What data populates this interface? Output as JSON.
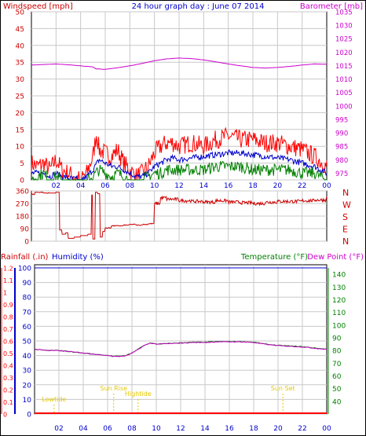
{
  "header": {
    "left": "Windspeed [mph]",
    "center": "24 hour graph day : June 07 2014",
    "right": "Barometer [mb]"
  },
  "colors": {
    "wind_axis": "#cc0000",
    "baro_axis": "#cc00cc",
    "title": "#0000cc",
    "wind_high": "#ff0000",
    "wind_avg": "#0000cc",
    "wind_low": "#008000",
    "barometer": "#cc00cc",
    "direction": "#cc0000",
    "temperature": "#008000",
    "dewpoint": "#cc00cc",
    "rain": "#ff0000",
    "humidity": "#0000cc",
    "sun": "#e6c800",
    "grid": "#c8c8c8"
  },
  "x_tick_labels": [
    "02",
    "04",
    "06",
    "08",
    "10",
    "12",
    "14",
    "16",
    "18",
    "20",
    "22",
    "00"
  ],
  "chart_data": [
    {
      "type": "line",
      "panel": "wind_barometer",
      "x_unit": "hour",
      "x_range": [
        0,
        24
      ],
      "left_axis": {
        "label": "Windspeed [mph]",
        "ticks": [
          "0",
          "5",
          "10",
          "15",
          "20",
          "25",
          "30",
          "35",
          "40",
          "45",
          "50"
        ],
        "range": [
          0,
          50
        ]
      },
      "right_axis": {
        "label": "Barometer [mb]",
        "ticks": [
          "975",
          "980",
          "985",
          "990",
          "995",
          "1000",
          "1005",
          "1010",
          "1015",
          "1020",
          "1025",
          "1030",
          "1035"
        ],
        "range": [
          972.5,
          1035
        ]
      },
      "series": [
        {
          "name": "wind_high",
          "axis": "left",
          "x": [
            0,
            0.5,
            1,
            1.5,
            2,
            2.5,
            3,
            3.5,
            4,
            4.5,
            5,
            5.3,
            5.5,
            6,
            6.5,
            7,
            7.5,
            8,
            8.5,
            9,
            9.5,
            10,
            10.5,
            11,
            11.5,
            12,
            13,
            14,
            15,
            16,
            17,
            18,
            19,
            20,
            21,
            22,
            23,
            24
          ],
          "y": [
            5,
            4,
            5,
            3,
            6,
            3,
            2,
            1,
            0,
            2,
            7,
            14,
            9,
            8,
            7,
            9,
            5,
            3,
            1,
            2,
            4,
            8,
            10,
            11,
            11,
            10,
            11,
            10,
            12,
            13,
            12,
            12,
            11,
            11,
            10,
            9,
            7,
            4
          ]
        },
        {
          "name": "wind_avg",
          "axis": "left",
          "x": [
            0,
            0.5,
            1,
            1.5,
            2,
            2.5,
            3,
            3.5,
            4,
            4.5,
            5,
            5.5,
            6,
            6.5,
            7,
            7.5,
            8,
            8.5,
            9,
            9.5,
            10,
            10.5,
            11,
            11.5,
            12,
            13,
            14,
            15,
            16,
            17,
            18,
            19,
            20,
            21,
            22,
            23,
            24
          ],
          "y": [
            2,
            2,
            2,
            1,
            2,
            1,
            0.5,
            0.3,
            0,
            1,
            3,
            6,
            5,
            4,
            4,
            3,
            2,
            1,
            1,
            2,
            4,
            5,
            6,
            6.5,
            6,
            6.5,
            7,
            7.5,
            8,
            8,
            7.5,
            7,
            6.5,
            6,
            5,
            4,
            2
          ]
        },
        {
          "name": "wind_low",
          "axis": "left",
          "x": [
            0,
            0.5,
            1,
            1.5,
            2,
            2.5,
            3,
            3.5,
            4,
            4.5,
            5,
            5.5,
            6,
            6.5,
            7,
            7.5,
            8,
            8.5,
            9,
            9.5,
            10,
            10.5,
            11,
            11.5,
            12,
            13,
            14,
            15,
            16,
            17,
            18,
            19,
            20,
            21,
            22,
            23,
            24
          ],
          "y": [
            0,
            1,
            2,
            0,
            1,
            0,
            0,
            0,
            0,
            0,
            1,
            3,
            2,
            1,
            2,
            1,
            0,
            0,
            0,
            1,
            2,
            2,
            3,
            3,
            3,
            3,
            3,
            4,
            4,
            4,
            3,
            3,
            3,
            3,
            2,
            2,
            0
          ]
        },
        {
          "name": "barometer",
          "axis": "right",
          "x": [
            0,
            1,
            2,
            3,
            4,
            5,
            5.5,
            6,
            7,
            8,
            9,
            10,
            11,
            12,
            13,
            14,
            15,
            16,
            17,
            18,
            19,
            20,
            21,
            22,
            23,
            24
          ],
          "y": [
            1015.2,
            1015.4,
            1015.6,
            1015.3,
            1014.9,
            1014.5,
            1013.8,
            1013.6,
            1014.2,
            1014.9,
            1015.8,
            1016.8,
            1017.5,
            1017.8,
            1017.6,
            1017.1,
            1016.4,
            1015.6,
            1014.9,
            1014.3,
            1014.1,
            1014.3,
            1014.7,
            1015.2,
            1015.6,
            1015.5
          ]
        }
      ]
    },
    {
      "type": "line",
      "panel": "wind_direction",
      "x_unit": "hour",
      "x_range": [
        0,
        24
      ],
      "y_range": [
        0,
        360
      ],
      "left_ticks": [
        "0",
        "90",
        "180",
        "270",
        "360"
      ],
      "right_labels": [
        "N",
        "W",
        "S",
        "E",
        "N"
      ],
      "series": [
        {
          "name": "direction",
          "x": [
            0,
            0.3,
            1,
            1.5,
            2,
            2.3,
            2.5,
            2.8,
            3,
            3.5,
            4,
            4.3,
            4.6,
            4.9,
            5,
            5.2,
            5.4,
            5.6,
            5.8,
            6,
            6.5,
            7,
            7.5,
            8,
            8.5,
            9,
            9.5,
            10,
            10.5,
            11,
            12,
            13,
            14,
            15,
            16,
            17,
            18,
            19,
            20,
            21,
            22,
            23,
            24
          ],
          "y": [
            335,
            350,
            345,
            345,
            350,
            80,
            50,
            60,
            20,
            30,
            40,
            40,
            50,
            330,
            15,
            350,
            340,
            30,
            70,
            95,
            110,
            110,
            115,
            120,
            115,
            120,
            125,
            270,
            310,
            300,
            290,
            285,
            280,
            290,
            280,
            275,
            270,
            280,
            285,
            285,
            290,
            295,
            315
          ]
        }
      ]
    },
    {
      "type": "line",
      "panel": "temperature_humidity_rain",
      "x_unit": "hour",
      "x_range": [
        0,
        24
      ],
      "left_axes": [
        {
          "label": "Rainfall (.in)",
          "ticks": [
            "0",
            "0.1",
            "0.2",
            "0.3",
            "0.4",
            "0.5",
            "0.6",
            "0.7",
            "0.8",
            "0.9",
            "1",
            "1.1",
            "1.2"
          ],
          "range": [
            0,
            1.2
          ]
        },
        {
          "label": "Humidity (%)",
          "ticks": [
            "0",
            "10",
            "20",
            "30",
            "40",
            "50",
            "60",
            "70",
            "80",
            "90",
            "100"
          ],
          "range": [
            0,
            100
          ]
        }
      ],
      "right_axis": {
        "label": "Temperature (°F)",
        "ticks": [
          "40",
          "50",
          "60",
          "70",
          "80",
          "90",
          "100",
          "110",
          "120",
          "130",
          "140"
        ],
        "range": [
          30,
          145
        ]
      },
      "right_title": "Dew Point (°F)",
      "series": [
        {
          "name": "temperature",
          "x": [
            0,
            1,
            2,
            3,
            4,
            5,
            6,
            6.5,
            7,
            7.5,
            8,
            8.5,
            9,
            9.5,
            10,
            11,
            12,
            13,
            14,
            15,
            16,
            17,
            18,
            19,
            20,
            21,
            22,
            23,
            24
          ],
          "y": [
            81,
            80,
            80,
            79,
            78,
            77,
            76,
            75.5,
            75.5,
            76,
            78,
            81,
            84,
            86,
            85,
            85.5,
            86,
            86.5,
            86.5,
            87,
            87,
            87,
            86.5,
            85,
            84,
            83.5,
            83,
            82,
            81
          ]
        },
        {
          "name": "dewpoint",
          "x": [
            0,
            1,
            2,
            3,
            4,
            5,
            6,
            6.5,
            7,
            7.5,
            8,
            8.5,
            9,
            9.5,
            10,
            11,
            12,
            13,
            14,
            15,
            16,
            17,
            18,
            19,
            20,
            21,
            22,
            23,
            24
          ],
          "y": [
            81,
            80,
            80,
            79,
            78,
            77,
            76,
            75.3,
            75.3,
            75.8,
            77.8,
            80.8,
            83.8,
            85.8,
            85,
            85.3,
            85.8,
            86.3,
            86.3,
            86.8,
            86.8,
            86.8,
            86.3,
            84.8,
            83.8,
            83.3,
            82.8,
            81.8,
            80.8
          ]
        },
        {
          "name": "rain",
          "x": [
            0,
            24
          ],
          "y": [
            0,
            0
          ]
        },
        {
          "name": "humidity",
          "x": [
            0,
            24
          ],
          "y": [
            100,
            100
          ]
        }
      ],
      "markers": [
        {
          "label": "Lowtide",
          "hour": 1.6,
          "level": 1
        },
        {
          "label": "Sun Rise",
          "hour": 6.5,
          "level": 2
        },
        {
          "label": "Hightide",
          "hour": 8.5,
          "level": 1.5
        },
        {
          "label": "Sun Set",
          "hour": 20.4,
          "level": 2
        }
      ]
    }
  ]
}
